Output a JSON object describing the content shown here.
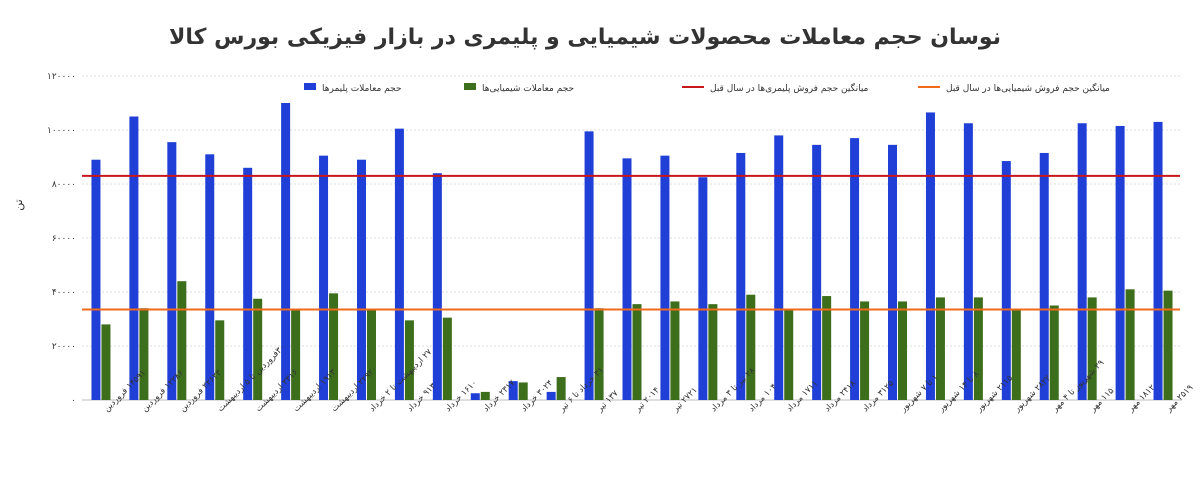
{
  "chart_data": {
    "type": "bar",
    "title": "نوسان حجم معاملات محصولات شیمیایی و پلیمری در بازار فیزیکی بورس کالا",
    "ylabel": "تن",
    "ylim": [
      0,
      120000
    ],
    "y_ticks": [
      "۰",
      "۲۰۰۰۰",
      "۴۰۰۰۰",
      "۶۰۰۰۰",
      "۸۰۰۰۰",
      "۱۰۰۰۰۰",
      "۱۲۰۰۰۰"
    ],
    "grid": true,
    "legend_position": "top",
    "categories": [
      "۱۴۵۹۱ فروردین",
      "۱۲۲۸۶ فروردین",
      "۲۲۶۲۳ فروردین",
      "۳۰فروردین تا ۵ اردیبهشت",
      "۲۳۱۶ اردیبهشت",
      "۱۹۱۳ اردیبهشت",
      "۲۲۹۲۰ اردیبهشت",
      "۲۷ اردیبهشت تا ۲ خرداد",
      "۹۱۳ خرداد",
      "۱۶۱۰ خرداد",
      "۲۳۱۷ خرداد",
      "۳۰۲۴ خرداد",
      "۳۱ خرداد تا ۶ تیر",
      "۱۳۷ تیر",
      "۲۰۱۴ تیر",
      "۲۷۲۱ تیر",
      "۲۸ تیر تا ۳ مرداد",
      "۱۰۴ مرداد",
      "۱۷۱۱ مرداد",
      "۲۴۱۸ مرداد",
      "۳۱۲۵ مرداد",
      "۱ تا ۷ شهریور",
      "۸ تا ۱۴ شهریور",
      "۲۱۱۵ شهریور",
      "۲۸۲۲ شهریور",
      "۲۹ شهریور تا ۴ مهر",
      "۱۱۵ مهر",
      "۱۸۱۲ مهر",
      "۲۵۱۹ مهر"
    ],
    "series": [
      {
        "name": "حجم معاملات پلیمرها",
        "color": "#1f3fd6",
        "values": [
          89000,
          105000,
          95500,
          91000,
          86000,
          110000,
          90500,
          89000,
          100500,
          84000,
          2500,
          7000,
          3000,
          99500,
          89500,
          90500,
          82500,
          91500,
          98000,
          94500,
          97000,
          94500,
          106500,
          102500,
          88500,
          91500,
          102500,
          101500,
          103000
        ]
      },
      {
        "name": "حجم معاملات شیمیایی‌ها",
        "color": "#3c6e1c",
        "values": [
          28000,
          34000,
          44000,
          29500,
          37500,
          33500,
          39500,
          33500,
          29500,
          30500,
          3000,
          6500,
          8500,
          34000,
          35500,
          36500,
          35500,
          39000,
          33500,
          38500,
          36500,
          36500,
          38000,
          38000,
          33500,
          35000,
          38000,
          41000,
          40500
        ]
      }
    ],
    "reference_lines": [
      {
        "name": "میانگین حجم فروش پلیمری‌ها در سال قبل",
        "value": 83000,
        "color": "#c8161d"
      },
      {
        "name": "میانگین حجم فروش شیمیایی‌ها در سال قبل",
        "value": 33500,
        "color": "#f06a1a"
      }
    ]
  }
}
